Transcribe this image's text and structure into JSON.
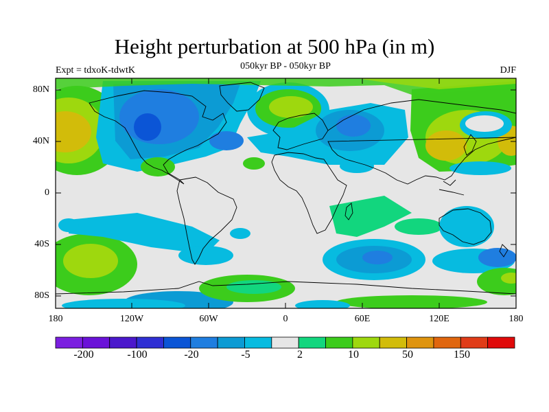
{
  "title": "Height perturbation at 500 hPa (in m)",
  "subtitle": "050kyr BP - 050kyr BP",
  "left_string": "Expt = tdxoK-tdwtK",
  "right_string": "DJF",
  "lat_labels": [
    "80N",
    "40N",
    "0",
    "40S",
    "80S"
  ],
  "lon_labels": [
    "180",
    "120W",
    "60W",
    "0",
    "60E",
    "120E",
    "180"
  ],
  "colorbar": {
    "colors": [
      "#7b1fe0",
      "#6a12d8",
      "#4b18cc",
      "#2f2fd4",
      "#0b55d6",
      "#1f7ee0",
      "#0c9bd4",
      "#07bbe0",
      "#e6e6e6",
      "#12d67e",
      "#3ccc1c",
      "#9ed80e",
      "#d2bc0a",
      "#df940e",
      "#e0660e",
      "#e03c18",
      "#e00a0a"
    ],
    "labels": [
      "-200",
      "-100",
      "-20",
      "-5",
      "2",
      "10",
      "50",
      "150"
    ]
  },
  "map_colors": {
    "background": "#e6e6e6",
    "coast": "#000000"
  }
}
